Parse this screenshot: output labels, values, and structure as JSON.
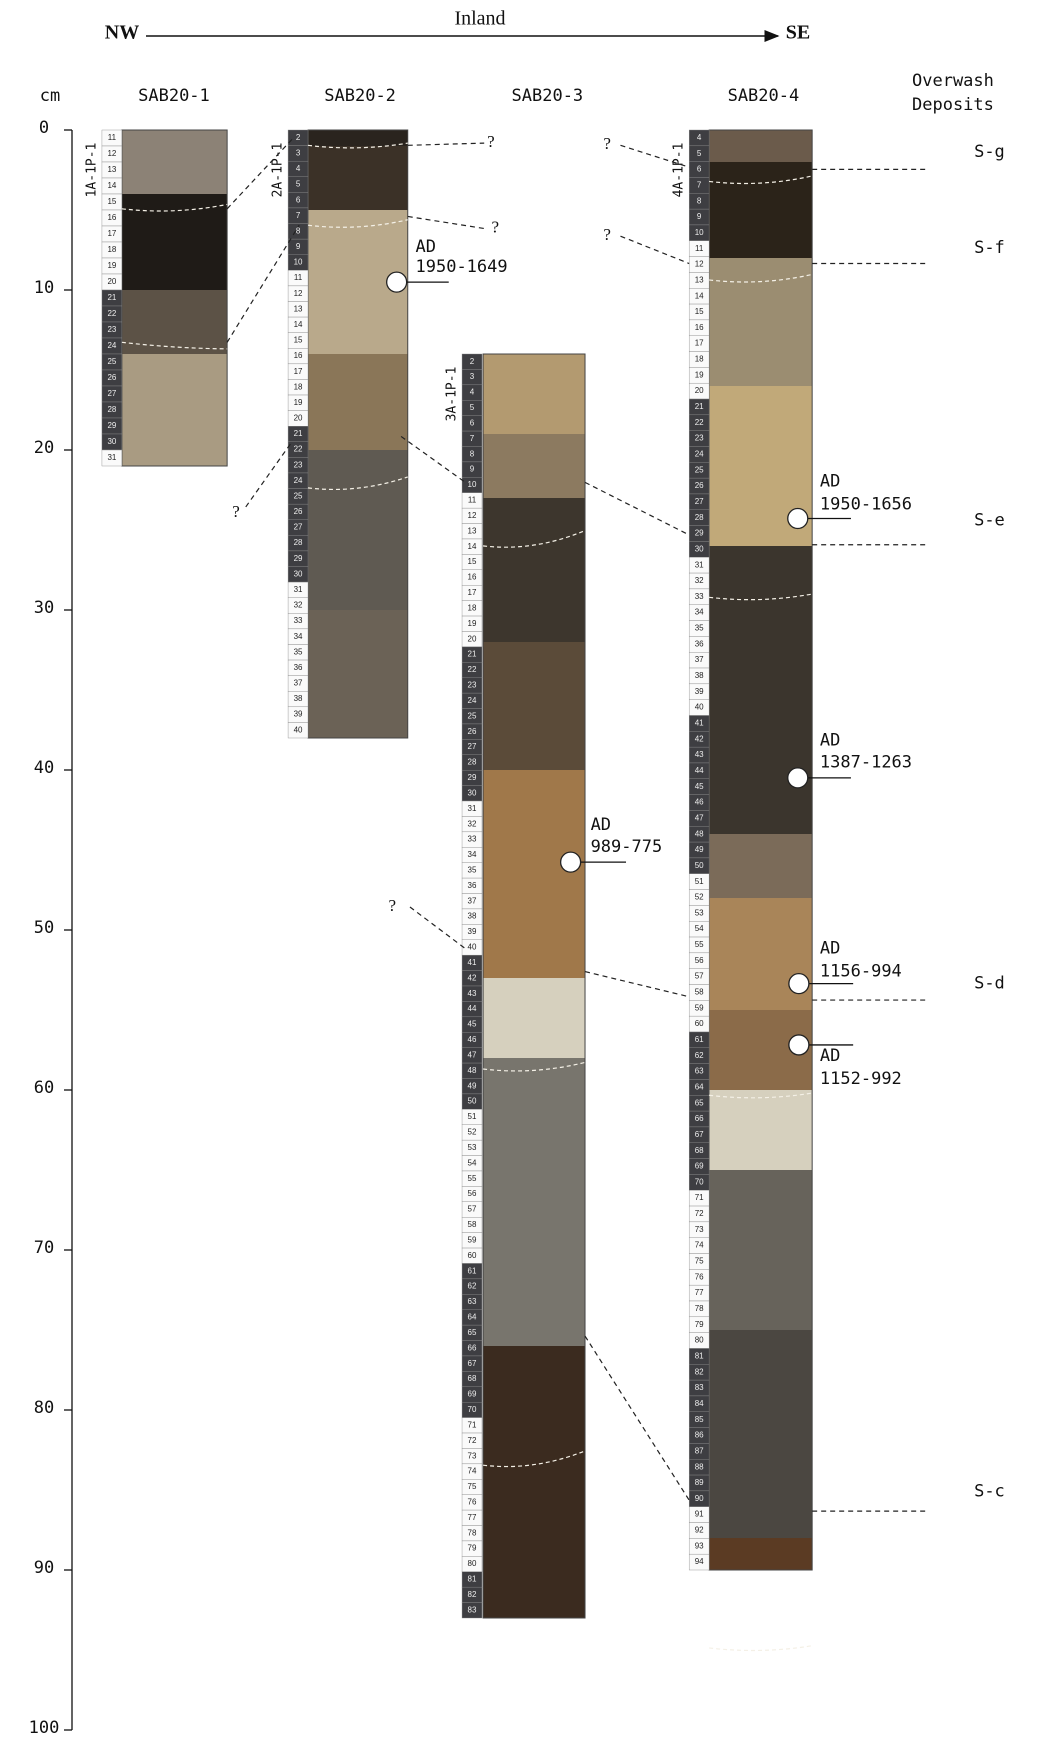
{
  "header": {
    "left": "NW",
    "center": "Inland",
    "right": "SE"
  },
  "axis": {
    "unit": "cm",
    "ticks": [
      0,
      10,
      20,
      30,
      40,
      50,
      60,
      70,
      80,
      90,
      100
    ]
  },
  "cores": [
    {
      "name": "SAB20-1",
      "section": "1A-1P-1",
      "scale": [
        11,
        12,
        13,
        14,
        15,
        16,
        17,
        18,
        19,
        20,
        21,
        22,
        23,
        24,
        25,
        26,
        27,
        28,
        29,
        30,
        31
      ]
    },
    {
      "name": "SAB20-2",
      "section": "2A-1P-1",
      "scale": [
        2,
        3,
        4,
        5,
        6,
        7,
        8,
        9,
        10,
        11,
        12,
        13,
        14,
        15,
        16,
        17,
        18,
        19,
        20,
        21,
        22,
        23,
        24,
        25,
        26,
        27,
        28,
        29,
        30,
        31,
        32,
        33,
        34,
        35,
        36,
        37,
        38,
        39,
        40
      ]
    },
    {
      "name": "SAB20-3",
      "section": "3A-1P-1",
      "scale": [
        2,
        3,
        4,
        5,
        6,
        7,
        8,
        9,
        10,
        11,
        12,
        13,
        14,
        15,
        16,
        17,
        18,
        19,
        20,
        21,
        22,
        23,
        24,
        25,
        26,
        27,
        28,
        29,
        30,
        31,
        32,
        33,
        34,
        35,
        36,
        37,
        38,
        39,
        40,
        41,
        42,
        43,
        44,
        45,
        46,
        47,
        48,
        49,
        50,
        51,
        52,
        53,
        54,
        55,
        56,
        57,
        58,
        59,
        60,
        61,
        62,
        63,
        64,
        65,
        66,
        67,
        68,
        69,
        70,
        71,
        72,
        73,
        74,
        75,
        76,
        77,
        78,
        79,
        80,
        81,
        82,
        83
      ]
    },
    {
      "name": "SAB20-4",
      "section": "4A-1P-1",
      "scale": [
        4,
        5,
        6,
        7,
        8,
        9,
        10,
        11,
        12,
        13,
        14,
        15,
        16,
        17,
        18,
        19,
        20,
        21,
        22,
        23,
        24,
        25,
        26,
        27,
        28,
        29,
        30,
        31,
        32,
        33,
        34,
        35,
        36,
        37,
        38,
        39,
        40,
        41,
        42,
        43,
        44,
        45,
        46,
        47,
        48,
        49,
        50,
        51,
        52,
        53,
        54,
        55,
        56,
        57,
        58,
        59,
        60,
        61,
        62,
        63,
        64,
        65,
        66,
        67,
        68,
        69,
        70,
        71,
        72,
        73,
        74,
        75,
        76,
        77,
        78,
        79,
        80,
        81,
        82,
        83,
        84,
        85,
        86,
        87,
        88,
        89,
        90,
        91,
        92,
        93,
        94
      ]
    }
  ],
  "deposits_heading": [
    "Overwash",
    "Deposits"
  ],
  "deposits": [
    "S-g",
    "S-f",
    "S-e",
    "S-d",
    "S-c"
  ],
  "dates": [
    {
      "prefix": "AD",
      "range": "1950-1649"
    },
    {
      "prefix": "AD",
      "range": "989-775"
    },
    {
      "prefix": "AD",
      "range": "1950-1656"
    },
    {
      "prefix": "AD",
      "range": "1387-1263"
    },
    {
      "prefix": "AD",
      "range": "1156-994"
    },
    {
      "prefix": "AD",
      "range": "1152-992"
    }
  ],
  "uncertain_marker": "?"
}
